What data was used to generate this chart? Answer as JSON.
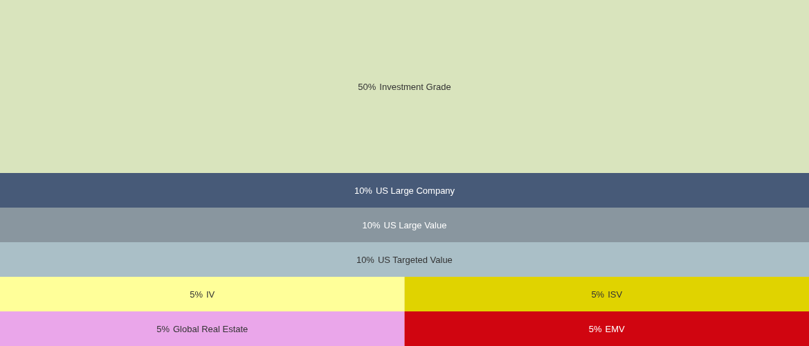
{
  "chart_data": {
    "type": "other",
    "categories": [
      "Investment Grade",
      "US Large Company",
      "US Large Value",
      "US Targeted Value",
      "IV",
      "ISV",
      "Global Real Estate",
      "EMV"
    ],
    "values": [
      50,
      10,
      10,
      10,
      5,
      5,
      5,
      5
    ],
    "value_labels": [
      "50%",
      "10%",
      "10%",
      "10%",
      "5%",
      "5%",
      "5%",
      "5%"
    ],
    "colors": [
      "#d9e4bd",
      "#475a78",
      "#89969f",
      "#aabfc7",
      "#ffff99",
      "#e0d300",
      "#eaa6ea",
      "#d00510"
    ]
  }
}
